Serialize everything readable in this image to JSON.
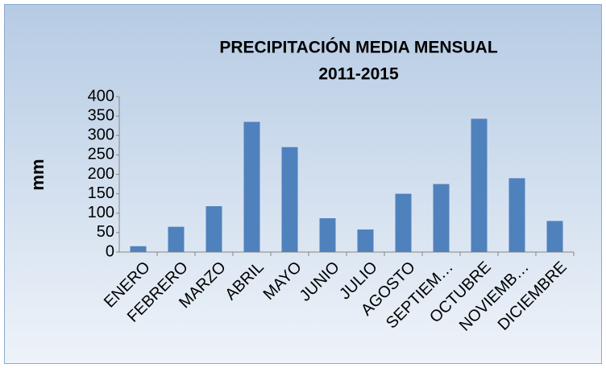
{
  "chart_data": {
    "type": "bar",
    "title": "PRECIPITACIÓN MEDIA MENSUAL",
    "subtitle": "2011-2015",
    "y_label": "mm",
    "categories": [
      "ENERO",
      "FEBRERO",
      "MARZO",
      "ABRIL",
      "MAYO",
      "JUNIO",
      "JULIO",
      "AGOSTO",
      "SEPTIEM…",
      "OCTUBRE",
      "NOVIEMB…",
      "DICIEMBRE"
    ],
    "values": [
      15,
      65,
      118,
      335,
      270,
      87,
      58,
      150,
      175,
      343,
      190,
      80
    ],
    "color": "#4f81bd",
    "ylim": [
      0,
      400
    ],
    "yticks": [
      0,
      50,
      100,
      150,
      200,
      250,
      300,
      350,
      400
    ],
    "grid": false
  }
}
